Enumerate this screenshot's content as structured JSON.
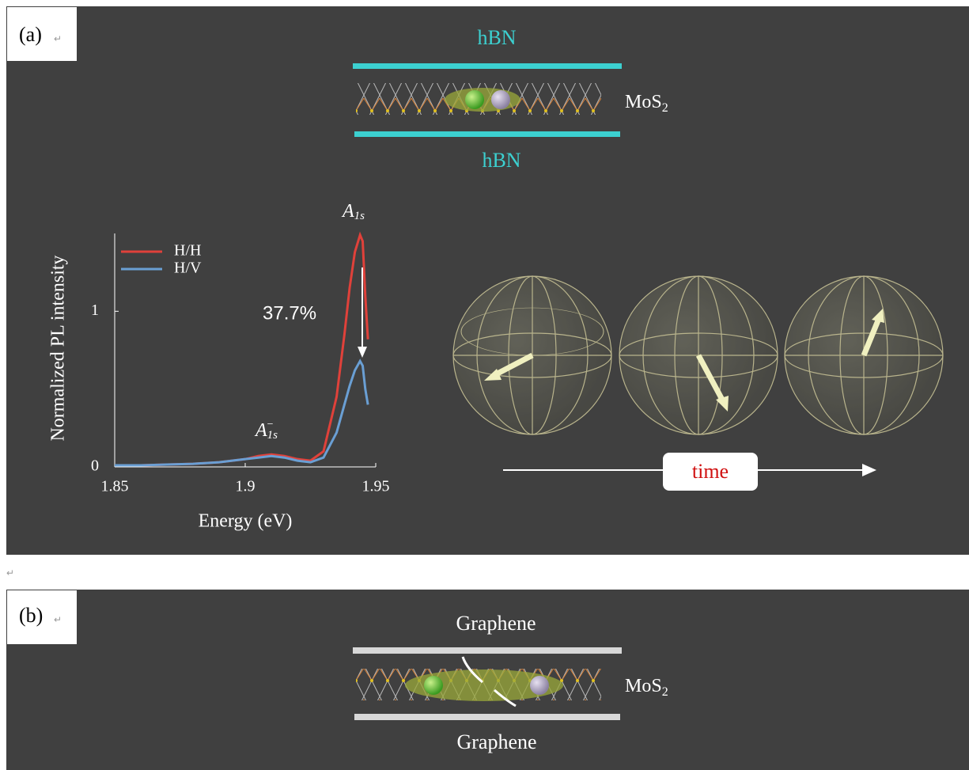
{
  "panel_a": {
    "label": "(a)",
    "paragraph_mark": "↵",
    "top_layer": "hBN",
    "bottom_layer": "hBN",
    "material": {
      "base": "MoS",
      "sub": "2"
    },
    "time_label": "time"
  },
  "chart_data": {
    "type": "line",
    "x_label": "Energy (eV)",
    "y_label": "Normalized PL intensity",
    "x": [
      1.85,
      1.86,
      1.87,
      1.88,
      1.89,
      1.9,
      1.905,
      1.91,
      1.915,
      1.92,
      1.925,
      1.93,
      1.935,
      1.938,
      1.94,
      1.942,
      1.944,
      1.945,
      1.946,
      1.947
    ],
    "series": [
      {
        "name": "H/H",
        "color": "#e0413a",
        "values": [
          0.01,
          0.01,
          0.015,
          0.02,
          0.03,
          0.05,
          0.07,
          0.08,
          0.07,
          0.05,
          0.04,
          0.1,
          0.45,
          0.85,
          1.15,
          1.38,
          1.49,
          1.45,
          1.1,
          0.82
        ]
      },
      {
        "name": "H/V",
        "color": "#6a9fd4",
        "values": [
          0.01,
          0.01,
          0.015,
          0.02,
          0.03,
          0.05,
          0.06,
          0.07,
          0.06,
          0.04,
          0.03,
          0.06,
          0.22,
          0.4,
          0.52,
          0.62,
          0.68,
          0.65,
          0.5,
          0.4
        ]
      }
    ],
    "xlim": [
      1.85,
      1.95
    ],
    "ylim": [
      0,
      1.5
    ],
    "xticks": [
      1.85,
      1.9,
      1.95
    ],
    "yticks": [
      0,
      1
    ],
    "annotation": "37.7%",
    "peak_labels": [
      {
        "base": "A",
        "sub": "1s"
      },
      {
        "base": "A",
        "sub": "1s",
        "sup": "−"
      }
    ]
  },
  "panel_b": {
    "label": "(b)",
    "paragraph_mark": "↵",
    "top_layer": "Graphene",
    "bottom_layer": "Graphene",
    "material": {
      "base": "MoS",
      "sub": "2"
    }
  },
  "between_mark": "↵"
}
